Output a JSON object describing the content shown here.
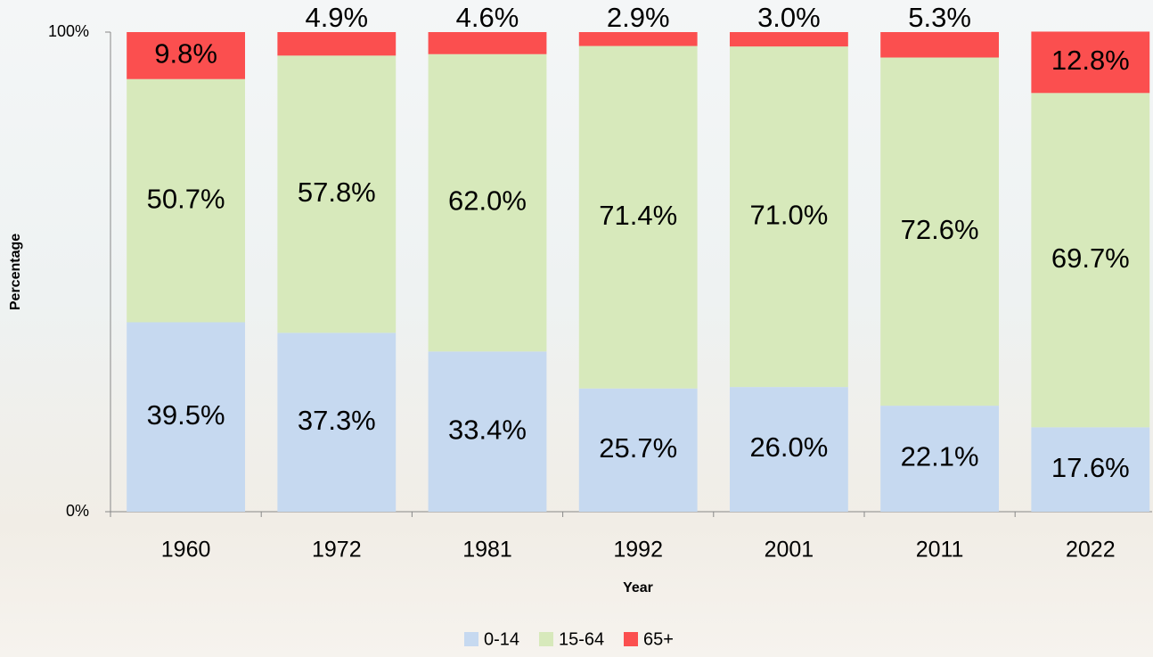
{
  "chart_data": {
    "type": "stacked_bar",
    "x_label": "Year",
    "y_label": "Percentage",
    "categories": [
      "1960",
      "1972",
      "1981",
      "1992",
      "2001",
      "2011",
      "2022"
    ],
    "series": [
      {
        "name": "0-14",
        "color": "#c6d9f0",
        "values": [
          39.5,
          37.3,
          33.4,
          25.7,
          26.0,
          22.1,
          17.6
        ],
        "value_labels": [
          "39.5%",
          "37.3%",
          "33.4%",
          "25.7%",
          "26.0%",
          "22.1%",
          "17.6%"
        ]
      },
      {
        "name": "15-64",
        "color": "#d7e9bb",
        "values": [
          50.7,
          57.8,
          62.0,
          71.4,
          71.0,
          72.6,
          69.7
        ],
        "value_labels": [
          "50.7%",
          "57.8%",
          "62.0%",
          "71.4%",
          "71.0%",
          "72.6%",
          "69.7%"
        ]
      },
      {
        "name": "65+",
        "color": "#fb4f4f",
        "values": [
          9.8,
          4.9,
          4.6,
          2.9,
          3.0,
          5.3,
          12.8
        ],
        "value_labels": [
          "9.8%",
          "4.9%",
          "4.6%",
          "2.9%",
          "3.0%",
          "5.3%",
          "12.8%"
        ]
      }
    ],
    "ylim": [
      0,
      100
    ],
    "yticks": [
      {
        "value": 0,
        "label": "0%"
      },
      {
        "value": 100,
        "label": "100%"
      }
    ],
    "legend": "bottom"
  }
}
